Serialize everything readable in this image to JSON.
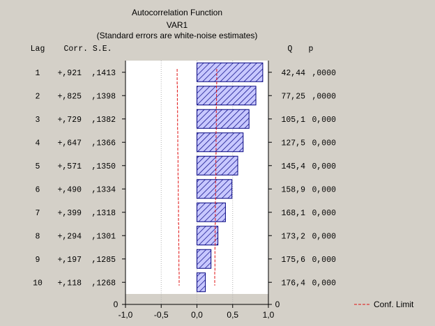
{
  "chart_data": {
    "type": "bar",
    "title": "Autocorrelation Function",
    "subtitle": "VAR1",
    "note": "(Standard errors are white-noise estimates)",
    "header": {
      "lag": "Lag",
      "corr_se": "Corr. S.E.",
      "q": "Q",
      "p": "p"
    },
    "rows": [
      {
        "lag": "1",
        "corr": "+,921",
        "se": ",1413",
        "q": "42,44",
        "p": ",0000"
      },
      {
        "lag": "2",
        "corr": "+,825",
        "se": ",1398",
        "q": "77,25",
        "p": ",0000"
      },
      {
        "lag": "3",
        "corr": "+,729",
        "se": ",1382",
        "q": "105,1",
        "p": "0,000"
      },
      {
        "lag": "4",
        "corr": "+,647",
        "se": ",1366",
        "q": "127,5",
        "p": "0,000"
      },
      {
        "lag": "5",
        "corr": "+,571",
        "se": ",1350",
        "q": "145,4",
        "p": "0,000"
      },
      {
        "lag": "6",
        "corr": "+,490",
        "se": ",1334",
        "q": "158,9",
        "p": "0,000"
      },
      {
        "lag": "7",
        "corr": "+,399",
        "se": ",1318",
        "q": "168,1",
        "p": "0,000"
      },
      {
        "lag": "8",
        "corr": "+,294",
        "se": ",1301",
        "q": "173,2",
        "p": "0,000"
      },
      {
        "lag": "9",
        "corr": "+,197",
        "se": ",1285",
        "q": "175,6",
        "p": "0,000"
      },
      {
        "lag": "10",
        "corr": "+,118",
        "se": ",1268",
        "q": "176,4",
        "p": "0,000"
      }
    ],
    "values": [
      0.921,
      0.825,
      0.729,
      0.647,
      0.571,
      0.49,
      0.399,
      0.294,
      0.197,
      0.118
    ],
    "conf_limit": [
      0.277,
      0.274,
      0.271,
      0.268,
      0.265,
      0.261,
      0.258,
      0.255,
      0.252,
      0.249
    ],
    "xlim": [
      -1.0,
      1.0
    ],
    "x_ticks": [
      "-1,0",
      "-0,5",
      "0,0",
      "0,5",
      "1,0"
    ],
    "left_axis_label_zero": "0",
    "right_axis_label_zero": "0",
    "legend": {
      "label": "Conf. Limit",
      "position": "bottom-right"
    },
    "grid": true,
    "colors": {
      "background": "#d4d0c8",
      "plot": "#ffffff",
      "bar_stroke": "#00007f",
      "bar_hatch": "#00007f",
      "bar_fill": "#c8c8ff",
      "conf_limit": "#e01010"
    }
  }
}
